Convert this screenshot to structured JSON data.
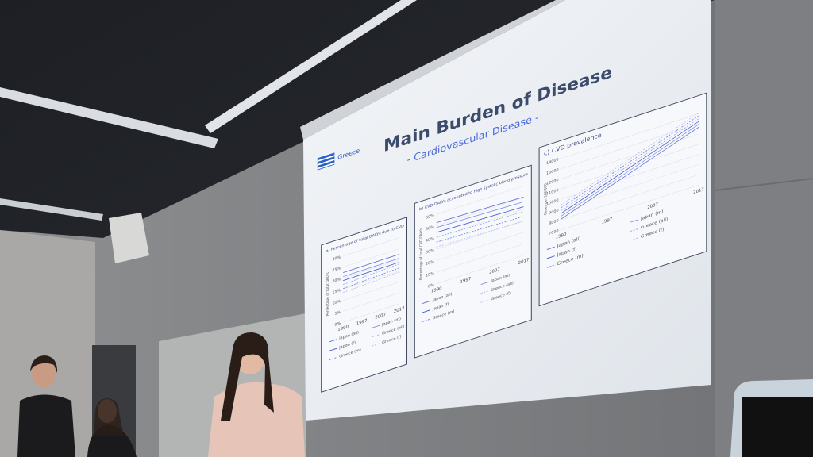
{
  "slide": {
    "title": "Main Burden of Disease",
    "subtitle": "- Cardiovascular Disease -",
    "flag_label": "Greece",
    "panels": [
      {
        "title": "a) Percentage of total DALYs due to CVD",
        "y_label": "Percentage of total DALYs",
        "y_ticks": [
          "30%",
          "25%",
          "20%",
          "15%",
          "10%",
          "5%",
          "0%"
        ],
        "x_labels": [
          "1990",
          "1997",
          "2007",
          "2017"
        ],
        "legend": [
          "Japan (all)",
          "Japan (m)",
          "Japan (f)",
          "Greece (all)",
          "Greece (m)",
          "Greece (f)"
        ]
      },
      {
        "title": "b) CVD-DALYs accounted to high systolic blood pressure",
        "y_label": "Percentage of total CVD-DALYs",
        "y_ticks": [
          "60%",
          "50%",
          "40%",
          "30%",
          "20%",
          "10%",
          "0%"
        ],
        "x_labels": [
          "1990",
          "1997",
          "2007",
          "2017"
        ],
        "legend": [
          "Japan (all)",
          "Japan (m)",
          "Japan (f)",
          "Greece (all)",
          "Greece (m)",
          "Greece (f)"
        ]
      },
      {
        "title": "c) CVD prevalence",
        "y_label": "Cases per 100'000",
        "y_ticks": [
          "14000",
          "13000",
          "12000",
          "11000",
          "10000",
          "9000",
          "8000",
          "7000"
        ],
        "x_labels": [
          "1990",
          "1997",
          "2007",
          "2017"
        ],
        "legend": [
          "Japan (all)",
          "Japan (m)",
          "Japan (f)",
          "Greece (all)",
          "Greece (m)",
          "Greece (f)"
        ]
      }
    ]
  }
}
